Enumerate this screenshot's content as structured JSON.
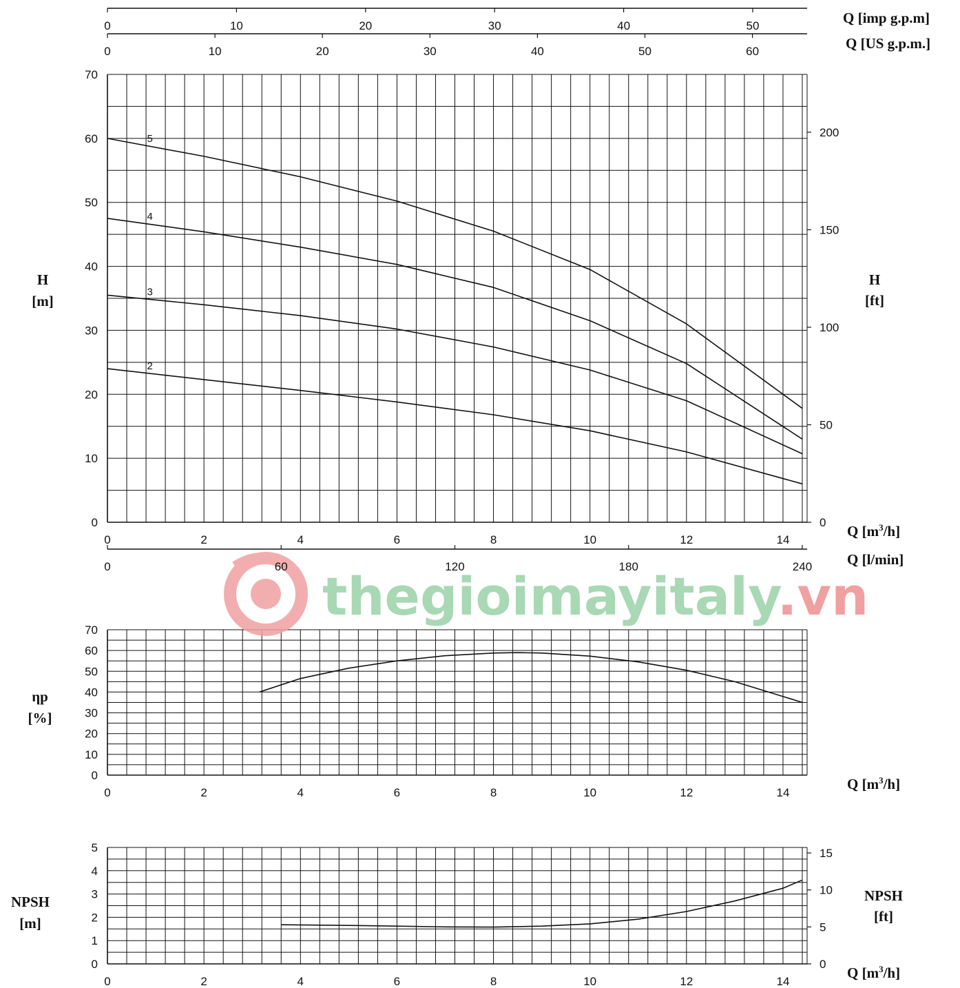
{
  "watermark": {
    "text_green": "thegioimayitaly",
    "text_red": ".vn",
    "green": "#a8d8b4",
    "red": "#f0a0a0"
  },
  "chart_data": [
    {
      "id": "head",
      "type": "line",
      "x_unit": "m³/h",
      "xlim": [
        0,
        14.5
      ],
      "ylim": [
        0,
        70
      ],
      "grid": true,
      "left_axis": {
        "unit_line1": "H",
        "unit_line2": "[m]",
        "ticks": [
          "0",
          "10",
          "20",
          "30",
          "40",
          "50",
          "60",
          "70"
        ]
      },
      "right_axis": {
        "unit_line1": "H",
        "unit_line2": "[ft]",
        "ticks": [
          "0",
          "50",
          "100",
          "150",
          "200"
        ]
      },
      "bottom_axis": {
        "unit": "Q [m³/h]",
        "ticks": [
          "0",
          "2",
          "4",
          "6",
          "8",
          "10",
          "12",
          "14"
        ]
      },
      "lpm_axis": {
        "unit": "Q [l/min]",
        "ticks": [
          "0",
          "60",
          "120",
          "180",
          "240"
        ]
      },
      "us_axis": {
        "unit": "Q [US g.p.m.]",
        "ticks": [
          "0",
          "10",
          "20",
          "30",
          "40",
          "50",
          "60"
        ]
      },
      "imp_axis": {
        "unit": "Q [imp g.p.m]",
        "ticks": [
          "0",
          "10",
          "20",
          "30",
          "40",
          "50"
        ]
      },
      "series": [
        {
          "name": "5",
          "x": [
            0,
            2,
            4,
            6,
            8,
            10,
            12,
            14.4
          ],
          "y": [
            60,
            57.2,
            54,
            50.2,
            45.5,
            39.5,
            31,
            17.8
          ]
        },
        {
          "name": "4",
          "x": [
            0,
            2,
            4,
            6,
            8,
            10,
            12,
            14.4
          ],
          "y": [
            47.5,
            45.4,
            43,
            40.3,
            36.7,
            31.5,
            24.8,
            13
          ]
        },
        {
          "name": "3",
          "x": [
            0,
            2,
            4,
            6,
            8,
            10,
            12,
            14.4
          ],
          "y": [
            35.5,
            34,
            32.3,
            30.2,
            27.4,
            23.8,
            19,
            10.7
          ]
        },
        {
          "name": "2",
          "x": [
            0,
            2,
            4,
            6,
            8,
            10,
            12,
            14.4
          ],
          "y": [
            24,
            22.3,
            20.6,
            18.8,
            16.8,
            14.3,
            11,
            6
          ]
        }
      ]
    },
    {
      "id": "efficiency",
      "type": "line",
      "xlim": [
        0,
        14.5
      ],
      "ylim": [
        0,
        70
      ],
      "grid": true,
      "left_axis": {
        "unit_line1": "ηp",
        "unit_line2": "[%]",
        "ticks": [
          "0",
          "10",
          "20",
          "30",
          "40",
          "50",
          "60",
          "70"
        ]
      },
      "bottom_axis": {
        "unit": "Q [m³/h]",
        "ticks": [
          "0",
          "2",
          "4",
          "6",
          "8",
          "10",
          "12",
          "14"
        ]
      },
      "series": [
        {
          "x": [
            3.15,
            4,
            5,
            6,
            7,
            8,
            8.5,
            9,
            10,
            11,
            12,
            13,
            14.4
          ],
          "y": [
            40,
            46.5,
            51.5,
            55,
            57.5,
            58.8,
            59,
            58.8,
            57.3,
            54.5,
            50.5,
            45,
            35
          ]
        }
      ]
    },
    {
      "id": "npsh",
      "type": "line",
      "xlim": [
        0,
        14.5
      ],
      "ylim": [
        0,
        5
      ],
      "grid": true,
      "left_axis": {
        "unit_line1": "NPSH",
        "unit_line2": "[m]",
        "ticks": [
          "0",
          "1",
          "2",
          "3",
          "4",
          "5"
        ]
      },
      "right_axis": {
        "unit_line1": "NPSH",
        "unit_line2": "[ft]",
        "ticks": [
          "0",
          "5",
          "10",
          "15"
        ]
      },
      "bottom_axis": {
        "unit": "Q [m³/h]",
        "ticks": [
          "0",
          "2",
          "4",
          "6",
          "8",
          "10",
          "12",
          "14"
        ]
      },
      "series": [
        {
          "x": [
            3.6,
            5,
            6,
            7,
            8,
            9,
            10,
            11,
            12,
            13,
            14,
            14.4
          ],
          "y": [
            1.68,
            1.65,
            1.62,
            1.59,
            1.58,
            1.62,
            1.72,
            1.92,
            2.25,
            2.7,
            3.25,
            3.6
          ]
        }
      ]
    }
  ]
}
